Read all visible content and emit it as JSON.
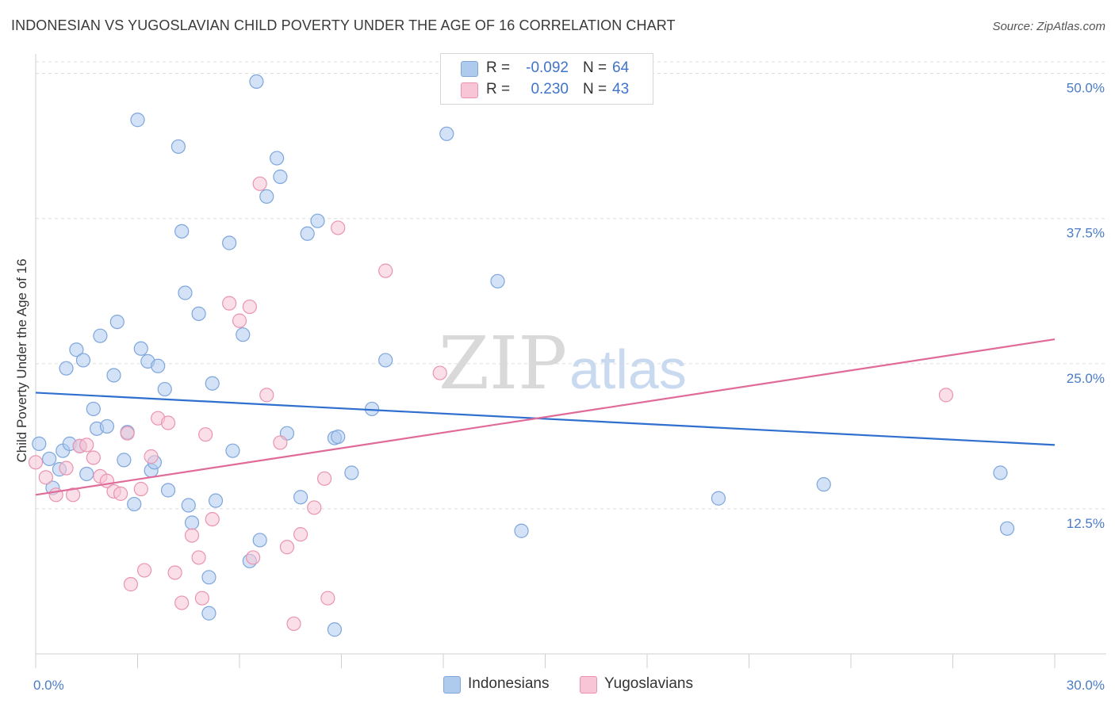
{
  "header": {
    "title": "INDONESIAN VS YUGOSLAVIAN CHILD POVERTY UNDER THE AGE OF 16 CORRELATION CHART",
    "source": "Source: ZipAtlas.com"
  },
  "watermark": {
    "zip": "ZIP",
    "atlas": "atlas"
  },
  "stats": [
    {
      "r_label": "R =",
      "r_value": "-0.092",
      "n_label": "N =",
      "n_value": "64",
      "color": "#aecbee",
      "border": "#7ea6dc"
    },
    {
      "r_label": "R =",
      "r_value": "0.230",
      "n_label": "N =",
      "n_value": "43",
      "color": "#f7c5d5",
      "border": "#ea93b0"
    }
  ],
  "legend": [
    {
      "label": "Indonesians",
      "color": "#aecbee",
      "border": "#7ea6dc"
    },
    {
      "label": "Yugoslavians",
      "color": "#f7c5d5",
      "border": "#ea93b0"
    }
  ],
  "chart_data": {
    "type": "scatter",
    "title": "INDONESIAN VS YUGOSLAVIAN CHILD POVERTY UNDER THE AGE OF 16 CORRELATION CHART",
    "xlabel": "",
    "ylabel": "Child Poverty Under the Age of 16",
    "xlim": [
      0,
      30
    ],
    "ylim": [
      0,
      51
    ],
    "x_tick_labels": [
      {
        "value": 0,
        "label": "0.0%"
      },
      {
        "value": 30,
        "label": "30.0%"
      }
    ],
    "y_tick_labels": [
      {
        "value": 12.5,
        "label": "12.5%"
      },
      {
        "value": 25,
        "label": "25.0%"
      },
      {
        "value": 37.5,
        "label": "37.5%"
      },
      {
        "value": 50,
        "label": "50.0%"
      }
    ],
    "grid": true,
    "legend_position": "bottom",
    "series": [
      {
        "name": "Indonesians",
        "color": "#7ea6dc",
        "fill": "#aecbee",
        "trend": {
          "x": [
            0,
            30
          ],
          "y": [
            22.5,
            18.0
          ]
        },
        "points": [
          [
            0.1,
            18.1
          ],
          [
            0.4,
            16.8
          ],
          [
            0.5,
            14.3
          ],
          [
            0.7,
            15.9
          ],
          [
            0.8,
            17.5
          ],
          [
            0.9,
            24.6
          ],
          [
            1.0,
            18.1
          ],
          [
            1.2,
            26.2
          ],
          [
            1.4,
            25.3
          ],
          [
            1.5,
            15.5
          ],
          [
            1.7,
            21.1
          ],
          [
            1.8,
            19.4
          ],
          [
            1.9,
            27.4
          ],
          [
            2.1,
            19.6
          ],
          [
            2.3,
            24.0
          ],
          [
            2.4,
            28.6
          ],
          [
            2.6,
            16.7
          ],
          [
            2.7,
            19.1
          ],
          [
            2.9,
            12.9
          ],
          [
            3.0,
            46.0
          ],
          [
            3.1,
            26.3
          ],
          [
            3.3,
            25.2
          ],
          [
            3.4,
            15.8
          ],
          [
            3.5,
            16.5
          ],
          [
            3.6,
            24.8
          ],
          [
            3.8,
            22.8
          ],
          [
            3.9,
            14.1
          ],
          [
            4.2,
            43.7
          ],
          [
            4.3,
            36.4
          ],
          [
            4.4,
            31.1
          ],
          [
            4.5,
            12.8
          ],
          [
            4.6,
            11.3
          ],
          [
            4.8,
            29.3
          ],
          [
            5.1,
            6.6
          ],
          [
            5.2,
            23.3
          ],
          [
            5.3,
            13.2
          ],
          [
            5.7,
            35.4
          ],
          [
            5.8,
            17.5
          ],
          [
            6.1,
            27.5
          ],
          [
            6.3,
            8.0
          ],
          [
            6.5,
            49.3
          ],
          [
            6.6,
            9.8
          ],
          [
            6.8,
            39.4
          ],
          [
            7.1,
            42.7
          ],
          [
            7.2,
            41.1
          ],
          [
            7.4,
            19.0
          ],
          [
            7.8,
            13.5
          ],
          [
            8.0,
            36.2
          ],
          [
            8.3,
            37.3
          ],
          [
            8.8,
            18.6
          ],
          [
            8.9,
            18.7
          ],
          [
            9.3,
            15.6
          ],
          [
            9.9,
            21.1
          ],
          [
            10.3,
            25.3
          ],
          [
            12.1,
            44.8
          ],
          [
            13.6,
            32.1
          ],
          [
            14.3,
            10.6
          ],
          [
            8.8,
            2.1
          ],
          [
            20.1,
            13.4
          ],
          [
            23.2,
            14.6
          ],
          [
            28.4,
            15.6
          ],
          [
            28.6,
            10.8
          ],
          [
            5.1,
            3.5
          ],
          [
            1.3,
            17.9
          ]
        ]
      },
      {
        "name": "Yugoslavians",
        "color": "#ea93b0",
        "fill": "#f7c5d5",
        "trend": {
          "x": [
            0,
            30
          ],
          "y": [
            13.7,
            27.1
          ]
        },
        "points": [
          [
            0.0,
            16.5
          ],
          [
            0.3,
            15.2
          ],
          [
            0.6,
            13.7
          ],
          [
            0.9,
            16.0
          ],
          [
            1.1,
            13.7
          ],
          [
            1.3,
            17.9
          ],
          [
            1.5,
            18.0
          ],
          [
            1.7,
            16.9
          ],
          [
            1.9,
            15.3
          ],
          [
            2.1,
            14.9
          ],
          [
            2.3,
            14.0
          ],
          [
            2.5,
            13.8
          ],
          [
            2.7,
            19.0
          ],
          [
            2.8,
            6.0
          ],
          [
            3.1,
            14.2
          ],
          [
            3.2,
            7.2
          ],
          [
            3.4,
            17.0
          ],
          [
            3.6,
            20.3
          ],
          [
            3.9,
            19.9
          ],
          [
            4.1,
            7.0
          ],
          [
            4.3,
            4.4
          ],
          [
            4.6,
            10.2
          ],
          [
            4.8,
            8.3
          ],
          [
            4.9,
            4.8
          ],
          [
            5.0,
            18.9
          ],
          [
            5.2,
            11.6
          ],
          [
            5.7,
            30.2
          ],
          [
            6.0,
            28.7
          ],
          [
            6.3,
            29.9
          ],
          [
            6.4,
            8.3
          ],
          [
            6.6,
            40.5
          ],
          [
            6.8,
            22.3
          ],
          [
            7.2,
            18.2
          ],
          [
            7.4,
            9.2
          ],
          [
            7.6,
            2.6
          ],
          [
            7.8,
            10.3
          ],
          [
            8.2,
            12.6
          ],
          [
            8.5,
            15.1
          ],
          [
            8.6,
            4.8
          ],
          [
            8.9,
            36.7
          ],
          [
            10.3,
            33.0
          ],
          [
            11.9,
            24.2
          ],
          [
            26.8,
            22.3
          ]
        ]
      }
    ]
  }
}
